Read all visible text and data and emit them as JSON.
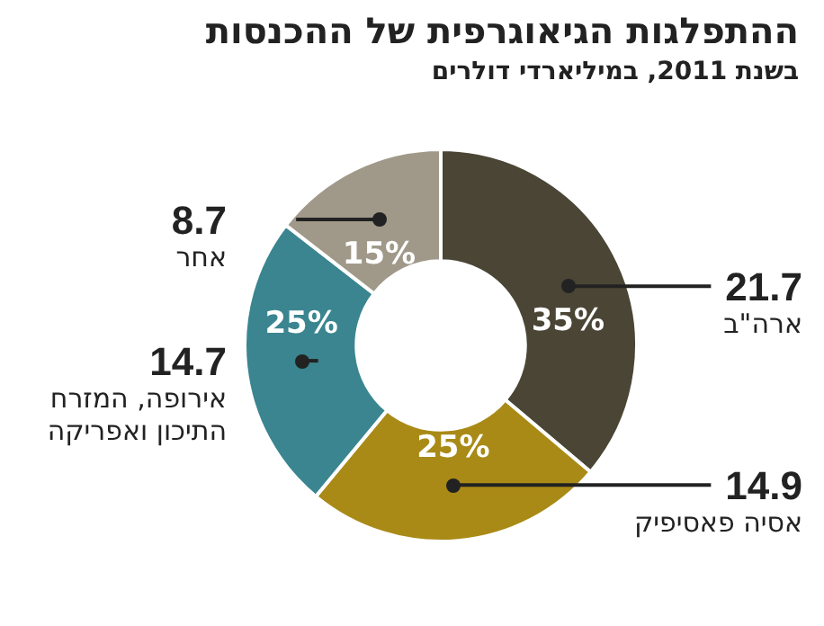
{
  "chart_data": {
    "type": "donut",
    "title": "ההתפלגות הגיאוגרפית של ההכנסות",
    "subtitle": "בשנת 2011, במיליארדי דולרים",
    "categories": [
      "ארה\"ב",
      "אסיה פאסיפיק",
      "אירופה, המזרח התיכון ואפריקה",
      "אחר"
    ],
    "values": [
      21.7,
      14.9,
      14.7,
      8.7
    ],
    "colors": [
      "#4a4535",
      "#a98a16",
      "#3a8590",
      "#a0998a"
    ],
    "annotations": [
      {
        "text": "35%",
        "x": "ארה\"ב"
      },
      {
        "text": "25%",
        "x": "אסיה פאסיפיק"
      },
      {
        "text": "25%",
        "x": "אירופה, המזרח התיכון ואפריקה"
      },
      {
        "text": "15%",
        "x": "אחר"
      }
    ],
    "data_labels": true,
    "legend": false
  }
}
